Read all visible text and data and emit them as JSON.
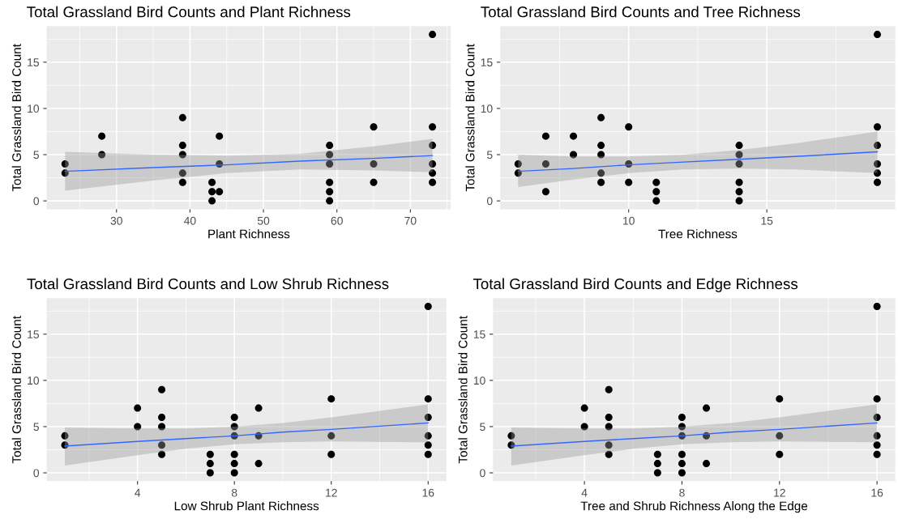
{
  "chart_data": [
    {
      "type": "scatter",
      "title": "Total Grassland Bird Counts and Plant Richness",
      "xlabel": "Plant Richness",
      "ylabel": "Total Grassland Bird Count",
      "xlim": [
        20.5,
        75.5
      ],
      "ylim": [
        -0.9,
        18.9
      ],
      "xticks": [
        {
          "value": 25,
          "label": null
        },
        30,
        {
          "value": 35,
          "label": null
        },
        40,
        {
          "value": 45,
          "label": null
        },
        50,
        {
          "value": 55,
          "label": null
        },
        60,
        {
          "value": 65,
          "label": null
        },
        70,
        {
          "value": 75,
          "label": null
        }
      ],
      "yticks": [
        0,
        {
          "value": 2.5,
          "label": null
        },
        5,
        {
          "value": 7.5,
          "label": null
        },
        10,
        {
          "value": 12.5,
          "label": null
        },
        15,
        {
          "value": 17.5,
          "label": null
        }
      ],
      "grid": true,
      "marker": "circle",
      "series": [
        {
          "color": "#000000",
          "x": [
            23,
            23,
            28,
            28,
            39,
            39,
            39,
            39,
            39,
            43,
            43,
            43,
            44,
            44,
            44,
            59,
            59,
            59,
            59,
            59,
            59,
            65,
            65,
            65,
            73,
            73,
            73,
            73,
            73,
            73
          ],
          "values": [
            4,
            3,
            7,
            5,
            9,
            6,
            5,
            3,
            2,
            2,
            1,
            0,
            7,
            4,
            1,
            6,
            5,
            4,
            2,
            1,
            0,
            8,
            4,
            2,
            18,
            8,
            6,
            4,
            3,
            2
          ]
        },
        {
          "type": "line",
          "marker": "none",
          "color": "#3366ff",
          "x": [
            23,
            35,
            45,
            55,
            65,
            73
          ],
          "values": [
            3.2,
            3.6,
            3.9,
            4.3,
            4.6,
            4.9
          ],
          "lower": [
            1.1,
            2.2,
            3.0,
            3.4,
            3.3,
            3.1
          ],
          "upper": [
            5.3,
            5.0,
            4.9,
            5.1,
            5.9,
            6.7
          ]
        }
      ]
    },
    {
      "type": "scatter",
      "title": "Total Grassland Bird Counts and Tree Richness",
      "xlabel": "Tree Richness",
      "ylabel": "Total Grassland Bird Count",
      "xlim": [
        5.35,
        19.65
      ],
      "ylim": [
        -0.9,
        18.9
      ],
      "xticks": [
        {
          "value": 7.5,
          "label": null
        },
        10,
        {
          "value": 12.5,
          "label": null
        },
        15,
        {
          "value": 17.5,
          "label": null
        }
      ],
      "yticks": [
        0,
        {
          "value": 2.5,
          "label": null
        },
        5,
        {
          "value": 7.5,
          "label": null
        },
        10,
        {
          "value": 12.5,
          "label": null
        },
        15,
        {
          "value": 17.5,
          "label": null
        }
      ],
      "grid": true,
      "marker": "circle",
      "series": [
        {
          "color": "#000000",
          "x": [
            6,
            6,
            7,
            7,
            7,
            8,
            8,
            9,
            9,
            9,
            9,
            9,
            10,
            10,
            10,
            11,
            11,
            11,
            14,
            14,
            14,
            14,
            14,
            14,
            19,
            19,
            19,
            19,
            19,
            19
          ],
          "values": [
            4,
            3,
            7,
            4,
            1,
            7,
            5,
            9,
            6,
            5,
            3,
            2,
            8,
            4,
            2,
            2,
            1,
            0,
            6,
            5,
            4,
            2,
            1,
            0,
            18,
            8,
            6,
            4,
            3,
            2
          ]
        },
        {
          "type": "line",
          "marker": "none",
          "color": "#3366ff",
          "x": [
            6,
            8,
            10,
            12,
            14,
            16,
            19
          ],
          "values": [
            3.2,
            3.5,
            3.9,
            4.2,
            4.5,
            4.8,
            5.3
          ],
          "lower": [
            1.5,
            2.3,
            3.0,
            3.4,
            3.5,
            3.4,
            3.0
          ],
          "upper": [
            5.0,
            4.8,
            4.8,
            5.0,
            5.5,
            6.2,
            7.5
          ]
        }
      ]
    },
    {
      "type": "scatter",
      "title": "Total Grassland Bird Counts and Low Shrub Richness",
      "xlabel": "Low Shrub Plant Richness",
      "ylabel": "Total Grassland Bird Count",
      "xlim": [
        0.25,
        16.75
      ],
      "ylim": [
        -0.9,
        18.9
      ],
      "xticks": [
        {
          "value": 2,
          "label": null
        },
        4,
        {
          "value": 6,
          "label": null
        },
        8,
        {
          "value": 10,
          "label": null
        },
        12,
        {
          "value": 14,
          "label": null
        },
        16
      ],
      "yticks": [
        0,
        {
          "value": 2.5,
          "label": null
        },
        5,
        {
          "value": 7.5,
          "label": null
        },
        10,
        {
          "value": 12.5,
          "label": null
        },
        15,
        {
          "value": 17.5,
          "label": null
        }
      ],
      "grid": true,
      "marker": "circle",
      "series": [
        {
          "color": "#000000",
          "x": [
            1,
            1,
            4,
            4,
            5,
            5,
            5,
            5,
            5,
            7,
            7,
            7,
            8,
            8,
            8,
            8,
            8,
            8,
            9,
            9,
            9,
            12,
            12,
            12,
            16,
            16,
            16,
            16,
            16,
            16
          ],
          "values": [
            4,
            3,
            7,
            5,
            9,
            6,
            5,
            3,
            2,
            2,
            1,
            0,
            6,
            5,
            4,
            2,
            1,
            0,
            7,
            4,
            1,
            8,
            4,
            2,
            18,
            8,
            6,
            4,
            3,
            2
          ]
        },
        {
          "type": "line",
          "marker": "none",
          "color": "#3366ff",
          "x": [
            1,
            4,
            6,
            8,
            10,
            12,
            16
          ],
          "values": [
            2.9,
            3.4,
            3.7,
            4.0,
            4.4,
            4.7,
            5.4
          ],
          "lower": [
            0.8,
            1.9,
            2.6,
            3.1,
            3.3,
            3.4,
            3.3
          ],
          "upper": [
            4.9,
            4.8,
            4.8,
            5.0,
            5.4,
            6.0,
            7.4
          ]
        }
      ]
    },
    {
      "type": "scatter",
      "title": "Total Grassland Bird Counts and Edge Richness",
      "xlabel": "Tree and Shrub Richness Along the Edge",
      "ylabel": "Total Grassland Bird Count",
      "xlim": [
        0.25,
        16.75
      ],
      "ylim": [
        -0.9,
        18.9
      ],
      "xticks": [
        {
          "value": 2,
          "label": null
        },
        4,
        {
          "value": 6,
          "label": null
        },
        8,
        {
          "value": 10,
          "label": null
        },
        12,
        {
          "value": 14,
          "label": null
        },
        16
      ],
      "yticks": [
        0,
        {
          "value": 2.5,
          "label": null
        },
        5,
        {
          "value": 7.5,
          "label": null
        },
        10,
        {
          "value": 12.5,
          "label": null
        },
        15,
        {
          "value": 17.5,
          "label": null
        }
      ],
      "grid": true,
      "marker": "circle",
      "series": [
        {
          "color": "#000000",
          "x": [
            1,
            1,
            4,
            4,
            5,
            5,
            5,
            5,
            5,
            7,
            7,
            7,
            8,
            8,
            8,
            8,
            8,
            8,
            9,
            9,
            9,
            12,
            12,
            12,
            16,
            16,
            16,
            16,
            16,
            16
          ],
          "values": [
            4,
            3,
            7,
            5,
            9,
            6,
            5,
            3,
            2,
            2,
            1,
            0,
            6,
            5,
            4,
            2,
            1,
            0,
            7,
            4,
            1,
            8,
            4,
            2,
            18,
            8,
            6,
            4,
            3,
            2
          ]
        },
        {
          "type": "line",
          "marker": "none",
          "color": "#3366ff",
          "x": [
            1,
            4,
            6,
            8,
            10,
            12,
            16
          ],
          "values": [
            2.9,
            3.4,
            3.7,
            4.0,
            4.4,
            4.7,
            5.4
          ],
          "lower": [
            0.8,
            1.9,
            2.6,
            3.1,
            3.3,
            3.4,
            3.3
          ],
          "upper": [
            4.9,
            4.8,
            4.8,
            5.0,
            5.4,
            6.0,
            7.4
          ]
        }
      ]
    }
  ]
}
